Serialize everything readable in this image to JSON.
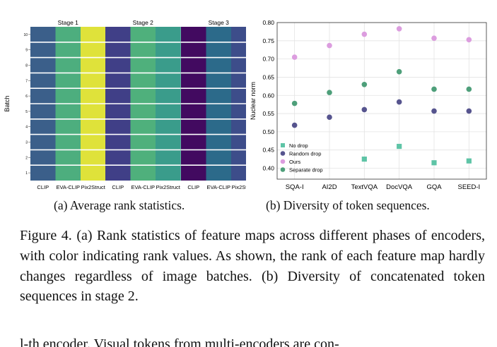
{
  "figure_a": {
    "caption": "(a) Average rank statistics.",
    "ylabel": "Batch",
    "batch_ticks": [
      "10",
      "9",
      "8",
      "7",
      "6",
      "5",
      "4",
      "3",
      "2",
      "1"
    ],
    "stages": [
      {
        "title": "Stage 1",
        "encoders": [
          "CLIP",
          "EVA-CLIP",
          "Pix2Struct"
        ],
        "colors": [
          "#3b5f8a",
          "#4dae7e",
          "#dfe23a"
        ]
      },
      {
        "title": "Stage 2",
        "encoders": [
          "CLIP",
          "EVA-CLIP",
          "Pix2Struct"
        ],
        "colors": [
          "#403f87",
          "#4fb07c",
          "#3a9c8b"
        ]
      },
      {
        "title": "Stage 3",
        "encoders": [
          "CLIP",
          "EVA-CLIP",
          "Pix2Struct"
        ],
        "colors": [
          "#420a60",
          "#2c6a8a",
          "#3d4d8a"
        ]
      }
    ]
  },
  "figure_b": {
    "caption": "(b) Diversity of token sequences."
  },
  "chart_data": {
    "type": "scatter",
    "title": "",
    "xlabel": "",
    "ylabel": "Nuclear norm",
    "categories": [
      "SQA-I",
      "AI2D",
      "TextVQA",
      "DocVQA",
      "GQA",
      "SEED-I"
    ],
    "ylim": [
      0.37,
      0.8
    ],
    "yticks": [
      "0.40",
      "0.45",
      "0.50",
      "0.55",
      "0.60",
      "0.65",
      "0.70",
      "0.75",
      "0.80"
    ],
    "grid": true,
    "legend_position": "bottom-left",
    "series": [
      {
        "name": "No drop",
        "marker": "square",
        "color": "#5ec4a6",
        "values": [
          null,
          null,
          0.425,
          0.46,
          0.415,
          0.42
        ]
      },
      {
        "name": "Random drop",
        "marker": "circle",
        "color": "#56548e",
        "values": [
          0.518,
          0.54,
          0.561,
          0.582,
          0.557,
          0.557
        ]
      },
      {
        "name": "Ours",
        "marker": "circle",
        "color": "#dc9ddf",
        "values": [
          0.705,
          0.737,
          0.768,
          0.783,
          0.757,
          0.753
        ]
      },
      {
        "name": "Separate drop",
        "marker": "circle",
        "color": "#4e9f7a",
        "values": [
          0.578,
          0.608,
          0.63,
          0.665,
          0.617,
          0.617
        ]
      }
    ]
  },
  "caption": {
    "label": "Figure 4.",
    "text": " (a) Rank statistics of feature maps across different phases of encoders, with color indicating rank values. As shown, the rank of each feature map hardly changes regardless of image batches. (b) Diversity of concatenated token sequences in stage 2."
  },
  "next_line": "l-th encoder.   Visual tokens from multi-encoders are con-"
}
